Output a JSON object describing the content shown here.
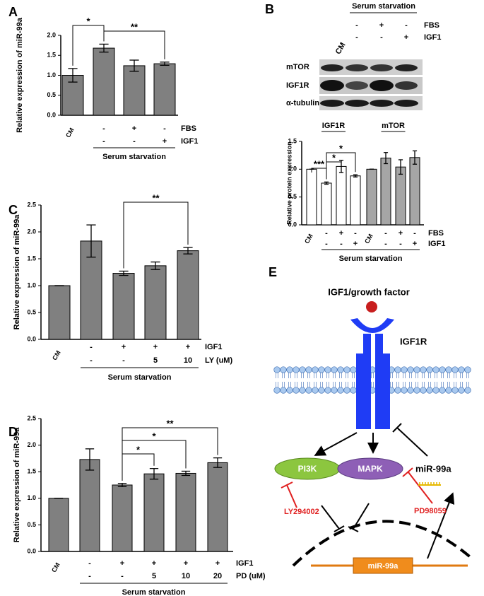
{
  "chart_data": [
    {
      "type": "bar",
      "panel_label": "A",
      "ylabel": "Relative expression of miR-99a",
      "categories": [
        "CM",
        null,
        null,
        null
      ],
      "values": [
        1.0,
        1.68,
        1.24,
        1.29
      ],
      "errors": [
        0.17,
        0.1,
        0.14,
        0.04
      ],
      "color": "#808080",
      "ylim": [
        0,
        2.0
      ],
      "yticks": [
        {
          "value": 0,
          "label": "0.0"
        },
        {
          "value": 0.5,
          "label": "0.5"
        },
        {
          "value": 1.0,
          "label": "1.0"
        },
        {
          "value": 1.5,
          "label": "1.5"
        },
        {
          "value": 2.0,
          "label": "2.0"
        }
      ],
      "x_rows": [
        {
          "label": "FBS",
          "values": [
            null,
            "-",
            "+",
            "-"
          ]
        },
        {
          "label": "IGF1",
          "values": [
            null,
            "-",
            "-",
            "+"
          ]
        }
      ],
      "group_label": "Serum starvation",
      "significance": [
        {
          "text": "*",
          "between": [
            0,
            1
          ]
        },
        {
          "text": "**",
          "between": [
            1,
            3
          ]
        }
      ]
    },
    {
      "type": "bar",
      "panel_label": "B",
      "ylabel": "Relative protein expression",
      "categories": [
        "CM",
        null,
        null,
        null
      ],
      "series": [
        {
          "name": "IGF1R",
          "color": "#ffffff",
          "values": [
            1.0,
            0.75,
            1.05,
            0.88
          ],
          "errors": [
            0,
            0.02,
            0.11,
            0.02
          ]
        },
        {
          "name": "mTOR",
          "color": "#a6a6a6",
          "values": [
            1.0,
            1.2,
            1.04,
            1.21
          ],
          "errors": [
            0,
            0.1,
            0.13,
            0.12
          ]
        }
      ],
      "ylim": [
        0,
        1.5
      ],
      "yticks": [
        {
          "value": 0,
          "label": "0.0"
        },
        {
          "value": 0.5,
          "label": "0.5"
        },
        {
          "value": 1.0,
          "label": "1.0"
        },
        {
          "value": 1.5,
          "label": "1.5"
        }
      ],
      "x_rows": [
        {
          "label": "FBS",
          "values": [
            null,
            "-",
            "+",
            "-"
          ]
        },
        {
          "label": "IGF1",
          "values": [
            null,
            "-",
            "-",
            "+"
          ]
        }
      ],
      "group_label": "Serum starvation",
      "significance": [
        {
          "text": "***",
          "between": [
            0,
            1
          ]
        },
        {
          "text": "*",
          "between": [
            1,
            2
          ]
        },
        {
          "text": "*",
          "between": [
            1,
            3
          ]
        }
      ]
    },
    {
      "type": "bar",
      "panel_label": "C",
      "ylabel": "Relative expression of miR-99a",
      "categories": [
        "CM",
        null,
        null,
        null,
        null
      ],
      "values": [
        1.0,
        1.83,
        1.23,
        1.37,
        1.65
      ],
      "errors": [
        0,
        0.3,
        0.04,
        0.07,
        0.06
      ],
      "color": "#808080",
      "ylim": [
        0,
        2.5
      ],
      "yticks": [
        {
          "value": 0,
          "label": "0.0"
        },
        {
          "value": 0.5,
          "label": "0.5"
        },
        {
          "value": 1.0,
          "label": "1.0"
        },
        {
          "value": 1.5,
          "label": "1.5"
        },
        {
          "value": 2.0,
          "label": "2.0"
        },
        {
          "value": 2.5,
          "label": "2.5"
        }
      ],
      "x_rows": [
        {
          "label": "IGF1",
          "values": [
            null,
            "-",
            "+",
            "+",
            "+"
          ]
        },
        {
          "label": "LY (uM)",
          "values": [
            null,
            "-",
            "-",
            "5",
            "10"
          ]
        }
      ],
      "group_label": "Serum starvation",
      "significance": [
        {
          "text": "**",
          "between": [
            2,
            4
          ]
        }
      ]
    },
    {
      "type": "bar",
      "panel_label": "D",
      "ylabel": "Relative expression of miR-99a",
      "categories": [
        "CM",
        null,
        null,
        null,
        null,
        null
      ],
      "values": [
        1.0,
        1.73,
        1.25,
        1.46,
        1.47,
        1.67
      ],
      "errors": [
        0,
        0.2,
        0.03,
        0.1,
        0.04,
        0.09
      ],
      "color": "#808080",
      "ylim": [
        0,
        2.5
      ],
      "yticks": [
        {
          "value": 0,
          "label": "0.0"
        },
        {
          "value": 0.5,
          "label": "0.5"
        },
        {
          "value": 1.0,
          "label": "1.0"
        },
        {
          "value": 1.5,
          "label": "1.5"
        },
        {
          "value": 2.0,
          "label": "2.0"
        },
        {
          "value": 2.5,
          "label": "2.5"
        }
      ],
      "x_rows": [
        {
          "label": "IGF1",
          "values": [
            null,
            "-",
            "+",
            "+",
            "+",
            "+"
          ]
        },
        {
          "label": "PD (uM)",
          "values": [
            null,
            "-",
            "-",
            "5",
            "10",
            "20"
          ]
        }
      ],
      "group_label": "Serum starvation",
      "significance": [
        {
          "text": "*",
          "between": [
            2,
            3
          ]
        },
        {
          "text": "*",
          "between": [
            2,
            4
          ]
        },
        {
          "text": "**",
          "between": [
            2,
            5
          ]
        }
      ]
    }
  ],
  "blot": {
    "header": "Serum starvation",
    "lane": "CM",
    "rows": [
      {
        "label": "FBS",
        "values": [
          "-",
          "+",
          "-"
        ]
      },
      {
        "label": "IGF1",
        "values": [
          "-",
          "-",
          "+"
        ]
      }
    ],
    "bands": [
      "mTOR",
      "IGF1R",
      "α-tubulin"
    ]
  },
  "diagram": {
    "panel_label": "E",
    "ligand": "IGF1/growth factor",
    "receptor": "IGF1R",
    "kinases": [
      "PI3K",
      "MAPK"
    ],
    "mirna": "miR-99a",
    "inhibitors": [
      "LY294002",
      "PD98059"
    ],
    "gene": "miR-99a"
  }
}
